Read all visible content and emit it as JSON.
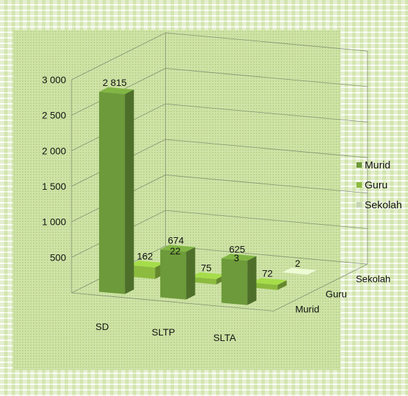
{
  "chart_data": {
    "type": "bar",
    "title": "",
    "xlabel": "",
    "ylabel": "",
    "ylim": [
      0,
      3000
    ],
    "yticks": [
      500,
      1000,
      1500,
      2000,
      2500,
      3000
    ],
    "ytick_labels": [
      "500",
      "1 000",
      "1 500",
      "2 000",
      "2 500",
      "3 000"
    ],
    "categories": [
      "SD",
      "SLTP",
      "SLTA"
    ],
    "series": [
      {
        "name": "Murid",
        "values": [
          2815,
          674,
          625
        ],
        "labels": [
          "2 815",
          "674",
          "625"
        ],
        "color": "#6d9a3a"
      },
      {
        "name": "Guru",
        "values": [
          162,
          75,
          72
        ],
        "labels": [
          "162",
          "75",
          "72"
        ],
        "color": "#8cbb3f"
      },
      {
        "name": "Sekolah",
        "values": [
          22,
          3,
          2
        ],
        "labels": [
          "22",
          "3",
          "2"
        ],
        "color": "#c9d5b4"
      }
    ],
    "grid": true,
    "legend_position": "right"
  }
}
